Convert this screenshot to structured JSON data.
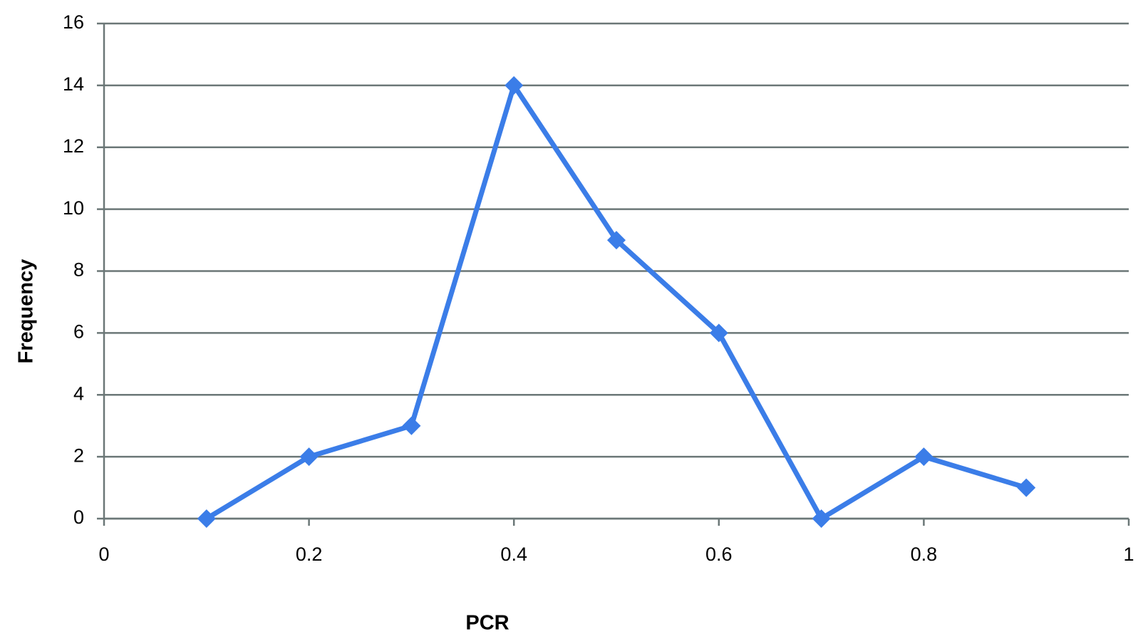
{
  "chart_data": {
    "type": "line",
    "x_label": "PCR",
    "y_label": "Frequency",
    "x": [
      0.1,
      0.2,
      0.3,
      0.4,
      0.5,
      0.6,
      0.7,
      0.8,
      0.9
    ],
    "series": [
      {
        "color": "#3b7de8",
        "values": [
          0,
          2,
          3,
          14,
          9,
          6,
          0,
          2,
          1
        ]
      }
    ],
    "xlim": [
      0,
      1
    ],
    "xticks": [
      0,
      0.2,
      0.4,
      0.6,
      0.8,
      1
    ],
    "ylim": [
      0,
      16
    ],
    "yticks": [
      0,
      2,
      4,
      6,
      8,
      10,
      12,
      14,
      16
    ],
    "grid": true
  }
}
